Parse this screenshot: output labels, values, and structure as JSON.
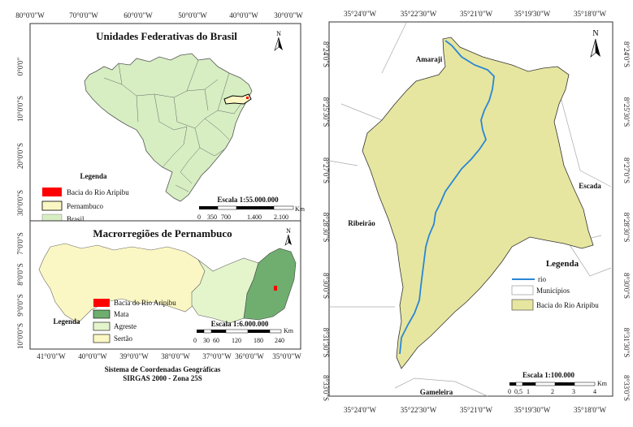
{
  "colors": {
    "brasil": "#d6eec2",
    "pernambuco": "#fbf7c4",
    "bacia": "#e6e6a0",
    "bacia_red": "#ff0000",
    "mata": "#6fae6f",
    "agreste": "#e4f5cc",
    "sertao": "#fbf7c4",
    "rio": "#2a86d6",
    "municipios": "#ffffff"
  },
  "top_left": {
    "title": "Unidades Federativas do Brasil",
    "x_ticks": [
      "80°0'0\"W",
      "70°0'0\"W",
      "60°0'0\"W",
      "50°0'0\"W",
      "40°0'0\"W",
      "30°0'0\"W"
    ],
    "y_ticks": [
      "0°0'0\"",
      "10°0'0\"S",
      "20°0'0\"S",
      "30°0'0\"S"
    ],
    "legend": {
      "title": "Legenda",
      "items": [
        {
          "label": "Bacia do Rio Aripibu",
          "color": "#ff0000"
        },
        {
          "label": "Pernambuco",
          "color": "#fbf7c4"
        },
        {
          "label": "Brasil",
          "color": "#d6eec2"
        }
      ]
    },
    "scale": {
      "label": "Escala 1:55.000.000",
      "unit": "Km",
      "ticks": [
        "0",
        "350",
        "700",
        "1.400",
        "2.100"
      ]
    }
  },
  "bottom_left": {
    "title": "Macrorregiões de Pernambuco",
    "x_ticks": [
      "41°0'0\"W",
      "40°0'0\"W",
      "39°0'0\"W",
      "38°0'0\"W",
      "37°0'0\"W",
      "36°0'0\"W",
      "35°0'0\"W"
    ],
    "y_ticks": [
      "7°0'0\"S",
      "8°0'0\"S",
      "9°0'0\"S",
      "10°0'0\"S"
    ],
    "legend": {
      "title": "Legenda",
      "items": [
        {
          "label": "Bacia do Rio Aripibu",
          "color": "#ff0000"
        },
        {
          "label": "Mata",
          "color": "#6fae6f"
        },
        {
          "label": "Agreste",
          "color": "#e4f5cc"
        },
        {
          "label": "Sertão",
          "color": "#fbf7c4"
        }
      ]
    },
    "scale": {
      "label": "Escala 1:6.000.000",
      "unit": "Km",
      "ticks": [
        "0",
        "30",
        "60",
        "120",
        "180",
        "240"
      ]
    }
  },
  "footer": {
    "line1": "Sistema de Coordenadas Geográficas",
    "line2": "SIRGAS 2000 - Zona 25S"
  },
  "right": {
    "top_ticks": [
      "35°24'0\"W",
      "35°22'30\"W",
      "35°21'0\"W",
      "35°19'30\"W",
      "35°18'0\"W"
    ],
    "bottom_ticks": [
      "35°24'0\"W",
      "35°22'30\"W",
      "35°21'0\"W",
      "35°19'30\"W",
      "35°18'0\"W"
    ],
    "left_ticks": [
      "8°24'0\"S",
      "8°25'30\"S",
      "8°27'0\"S",
      "8°28'30\"S",
      "8°30'0\"S",
      "8°31'30\"S",
      "8°33'0\"S"
    ],
    "right_ticks": [
      "8°24'0\"S",
      "8°25'30\"S",
      "8°27'0\"S",
      "8°28'30\"S",
      "8°30'0\"S",
      "8°31'30\"S",
      "8°33'0\"S"
    ],
    "places": {
      "amaraji": "Amaraji",
      "escada": "Escada",
      "ribeirao": "Ribeirão",
      "gameleira": "Gameleira"
    },
    "legend": {
      "title": "Legenda",
      "items": [
        {
          "label": "rio",
          "type": "line",
          "color": "#2a86d6"
        },
        {
          "label": "Municípios",
          "type": "box",
          "color": "#ffffff"
        },
        {
          "label": "Bacia do Rio Aripibu",
          "type": "box",
          "color": "#e6e6a0"
        }
      ]
    },
    "scale": {
      "label": "Escala  1:100.000",
      "unit": "Km",
      "ticks": [
        "0",
        "0,5",
        "1",
        "2",
        "3",
        "4"
      ]
    }
  },
  "north_label": "N"
}
